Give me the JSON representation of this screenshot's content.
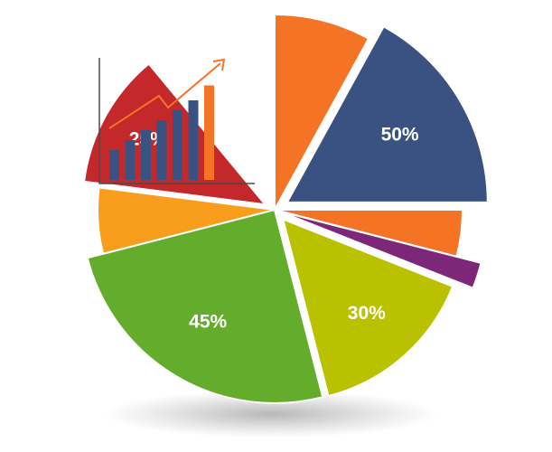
{
  "chart_data": {
    "type": "pie",
    "slices": [
      {
        "value": 8,
        "label": "",
        "color": "#f47324"
      },
      {
        "value": 17,
        "label": "50%",
        "color": "#3a5282"
      },
      {
        "value": 4,
        "label": "",
        "color": "#f47324"
      },
      {
        "value": 2,
        "label": "",
        "color": "#7c2778"
      },
      {
        "value": 15,
        "label": "30%",
        "color": "#bac200"
      },
      {
        "value": 25,
        "label": "45%",
        "color": "#63ac2c"
      },
      {
        "value": 6,
        "label": "",
        "color": "#f99d1c"
      },
      {
        "value": 12,
        "label": "25%",
        "color": "#c4282a"
      },
      {
        "value": 11,
        "label": "",
        "color": "#ffffff"
      }
    ]
  },
  "icon": {
    "name": "growth-bar-chart-icon",
    "bars": [
      3,
      4,
      5,
      6,
      7,
      8,
      9.5
    ],
    "bar_color": "#3a5282",
    "highlight_color": "#f47324"
  }
}
